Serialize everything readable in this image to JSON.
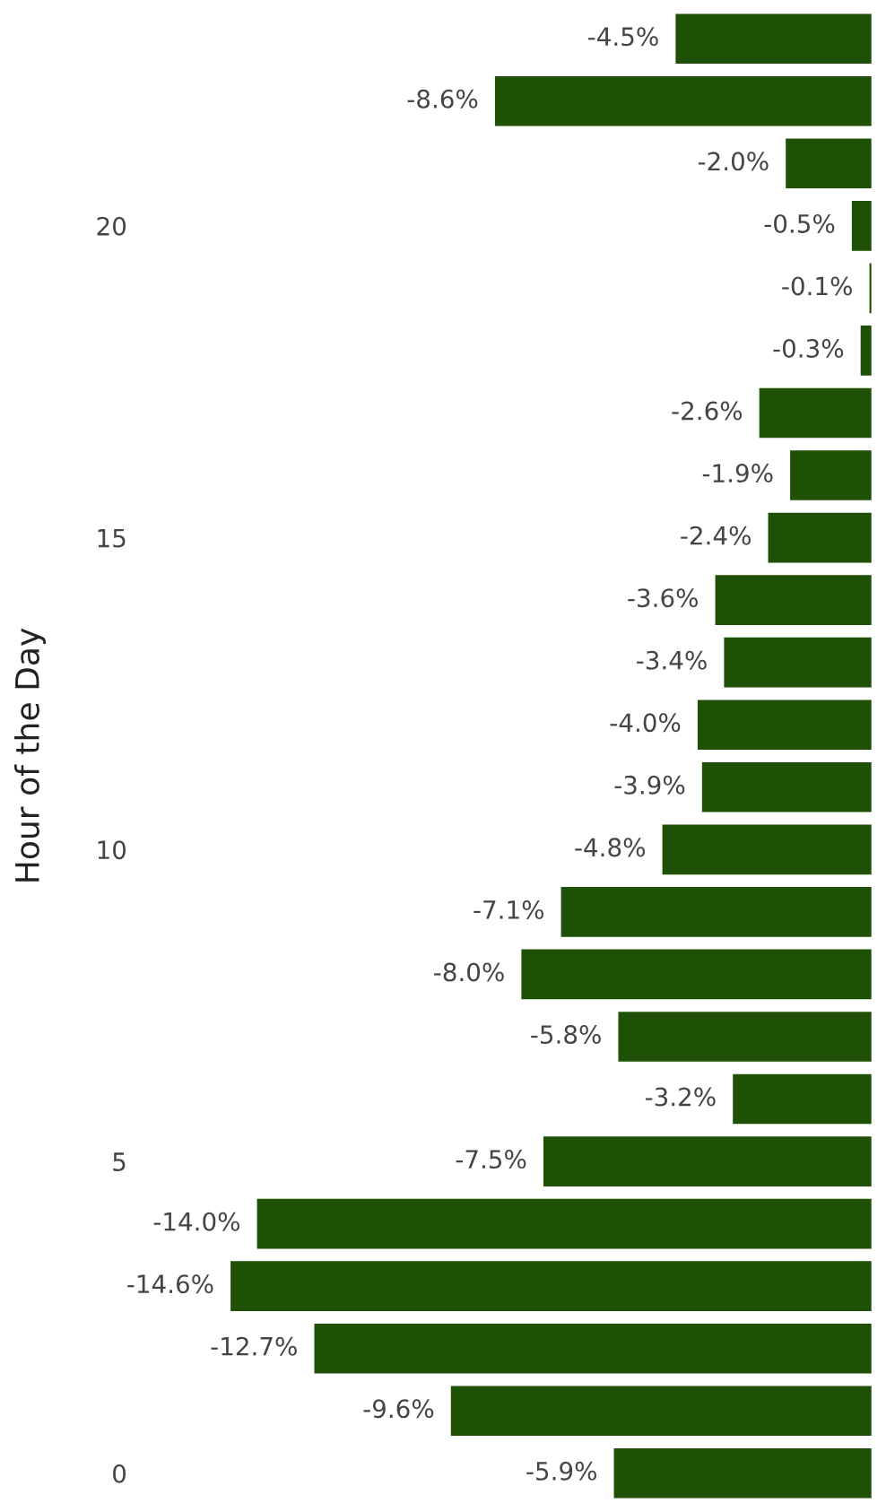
{
  "chart_data": {
    "type": "bar",
    "orientation": "horizontal",
    "ylabel": "Hour of the Day",
    "categories": [
      null,
      null,
      null,
      "20",
      null,
      null,
      null,
      null,
      "15",
      null,
      null,
      null,
      null,
      "10",
      null,
      null,
      null,
      null,
      "5",
      null,
      null,
      null,
      null,
      "0"
    ],
    "values": [
      -4.5,
      -8.6,
      -2.0,
      -0.5,
      -0.1,
      -0.3,
      -2.6,
      -1.9,
      -2.4,
      -3.6,
      -3.4,
      -4.0,
      -3.9,
      -4.8,
      -7.1,
      -8.0,
      -5.8,
      -3.2,
      -7.5,
      -14.0,
      -14.6,
      -12.7,
      -9.6,
      -5.9
    ],
    "value_labels": [
      "-4.5%",
      "-8.6%",
      "-2.0%",
      "-0.5%",
      "-0.1%",
      "-0.3%",
      "-2.6%",
      "-1.9%",
      "-2.4%",
      "-3.6%",
      "-3.4%",
      "-4.0%",
      "-3.9%",
      "-4.8%",
      "-7.1%",
      "-8.0%",
      "-5.8%",
      "-3.2%",
      "-7.5%",
      "-14.0%",
      "-14.6%",
      "-12.7%",
      "-9.6%",
      "-5.9%"
    ],
    "color": "#1e5006",
    "tick_labels": "y",
    "grid": false,
    "legend": false
  }
}
